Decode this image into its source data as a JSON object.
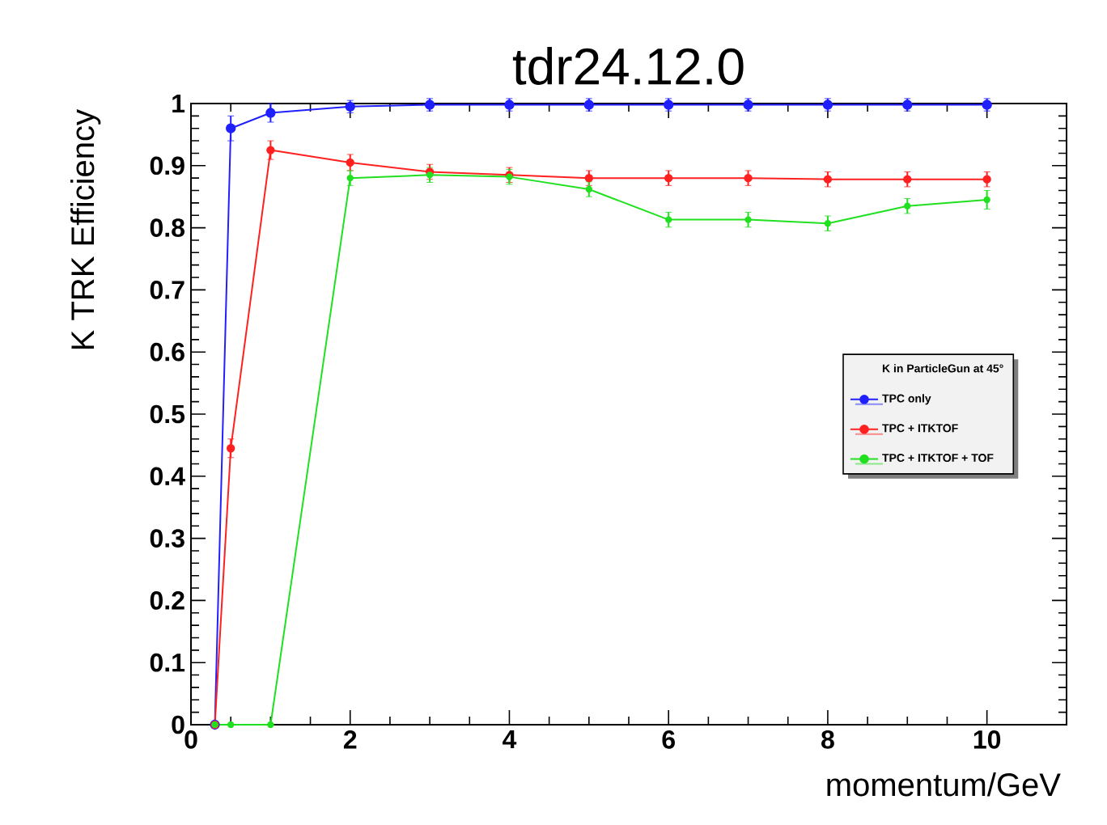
{
  "chart_data": {
    "type": "line",
    "title": "tdr24.12.0",
    "xlabel": "momentum/GeV",
    "ylabel": "K TRK Efficiency",
    "legend_title": "K in ParticleGun at 45°",
    "legend": "center right",
    "grid": false,
    "x": [
      0.3,
      0.5,
      1,
      2,
      3,
      4,
      5,
      6,
      7,
      8,
      9,
      10
    ],
    "series": [
      {
        "name": "TPC only",
        "color": "#2020ff",
        "marker": "circle",
        "values": [
          0,
          0.96,
          0.985,
          0.995,
          0.998,
          0.998,
          0.998,
          0.998,
          0.998,
          0.998,
          0.998,
          0.998
        ],
        "errors": [
          0,
          0.02,
          0.015,
          0.01,
          0.01,
          0.01,
          0.01,
          0.01,
          0.01,
          0.01,
          0.01,
          0.01
        ]
      },
      {
        "name": "TPC + ITKTOF",
        "color": "#ff2020",
        "marker": "circle",
        "values": [
          0,
          0.445,
          0.925,
          0.905,
          0.89,
          0.885,
          0.88,
          0.88,
          0.88,
          0.878,
          0.878,
          0.878
        ],
        "errors": [
          0,
          0.015,
          0.015,
          0.013,
          0.012,
          0.012,
          0.012,
          0.012,
          0.012,
          0.012,
          0.012,
          0.012
        ]
      },
      {
        "name": "TPC + ITKTOF + TOF",
        "color": "#20e020",
        "marker": "circle",
        "values": [
          0,
          0,
          0,
          0.88,
          0.885,
          0.882,
          0.862,
          0.813,
          0.813,
          0.807,
          0.835,
          0.845
        ],
        "errors": [
          0,
          0,
          0,
          0.012,
          0.012,
          0.012,
          0.012,
          0.012,
          0.012,
          0.012,
          0.012,
          0.015
        ]
      }
    ],
    "xlim": [
      0,
      11
    ],
    "ylim": [
      0,
      1
    ],
    "xticks": [
      0,
      2,
      4,
      6,
      8,
      10
    ],
    "yticks": [
      0,
      0.1,
      0.2,
      0.3,
      0.4,
      0.5,
      0.6,
      0.7,
      0.8,
      0.9,
      1
    ]
  }
}
